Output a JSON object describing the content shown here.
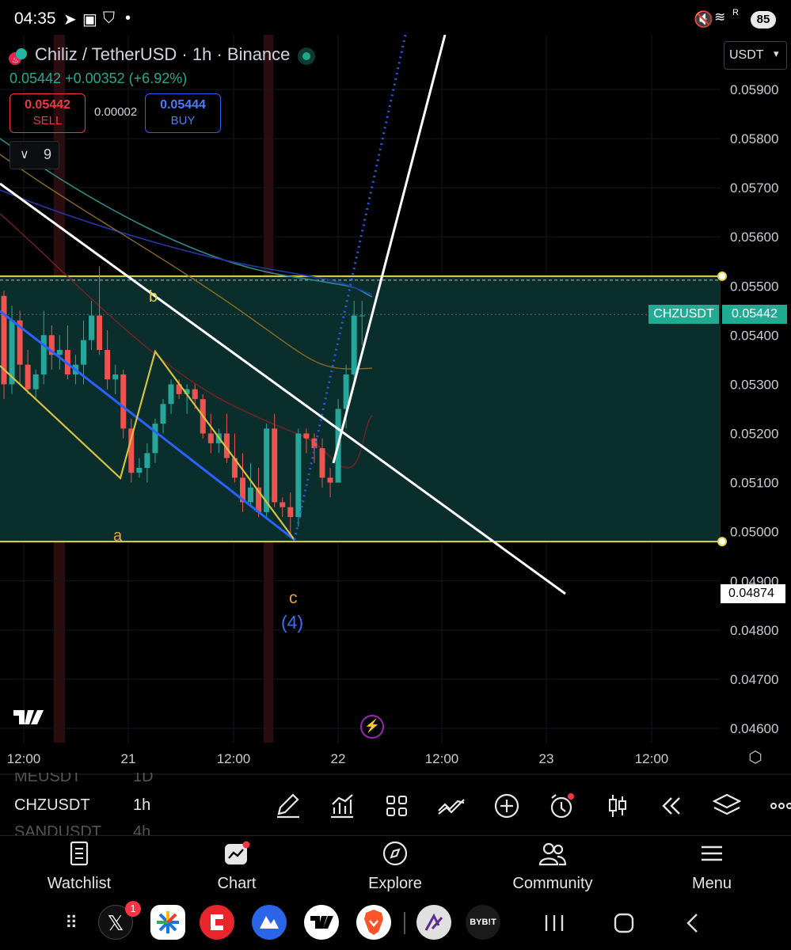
{
  "status_bar": {
    "time": "04:35",
    "battery": "85",
    "signal_label": "R"
  },
  "legend": {
    "title": "Chiliz / TetherUSD · 1h · Binance",
    "last_price": "0.05442",
    "change": "+0.00352 (+6.92%)",
    "sell_price": "0.05442",
    "sell_label": "SELL",
    "spread": "0.00002",
    "buy_price": "0.05444",
    "buy_label": "BUY",
    "indicator_count": "9"
  },
  "currency_select": "USDT",
  "price_axis": {
    "ticks": [
      "0.05900",
      "0.05800",
      "0.05700",
      "0.05600",
      "0.05500",
      "0.05400",
      "0.05300",
      "0.05200",
      "0.05100",
      "0.05000",
      "0.04900",
      "0.04800",
      "0.04700",
      "0.04600"
    ],
    "symbol_tag": "CHZUSDT",
    "current_price_tag": "0.05442",
    "crosshair_price_tag": "0.04874"
  },
  "time_axis": {
    "ticks": [
      "12:00",
      "21",
      "12:00",
      "22",
      "12:00",
      "23",
      "12:00"
    ]
  },
  "annotations": {
    "wave_a": "a",
    "wave_b": "b",
    "wave_c": "c",
    "wave_4": "(4)"
  },
  "chart_data": {
    "type": "candlestick",
    "symbol": "CHZUSDT",
    "interval": "1h",
    "exchange": "Binance",
    "y_range": [
      0.0455,
      0.0602
    ],
    "candles": [
      {
        "o": 0.0548,
        "h": 0.0549,
        "l": 0.0527,
        "c": 0.053
      },
      {
        "o": 0.053,
        "h": 0.0546,
        "l": 0.0528,
        "c": 0.0543
      },
      {
        "o": 0.0543,
        "h": 0.0545,
        "l": 0.053,
        "c": 0.0534
      },
      {
        "o": 0.0534,
        "h": 0.0537,
        "l": 0.0528,
        "c": 0.0529
      },
      {
        "o": 0.0529,
        "h": 0.0533,
        "l": 0.0527,
        "c": 0.0532
      },
      {
        "o": 0.0532,
        "h": 0.0545,
        "l": 0.053,
        "c": 0.054
      },
      {
        "o": 0.054,
        "h": 0.0542,
        "l": 0.0533,
        "c": 0.0536
      },
      {
        "o": 0.0536,
        "h": 0.054,
        "l": 0.0533,
        "c": 0.0537
      },
      {
        "o": 0.0537,
        "h": 0.0542,
        "l": 0.0531,
        "c": 0.0532
      },
      {
        "o": 0.0532,
        "h": 0.0536,
        "l": 0.053,
        "c": 0.0534
      },
      {
        "o": 0.0534,
        "h": 0.0543,
        "l": 0.053,
        "c": 0.0539
      },
      {
        "o": 0.0539,
        "h": 0.0547,
        "l": 0.0537,
        "c": 0.0544
      },
      {
        "o": 0.0544,
        "h": 0.0554,
        "l": 0.0536,
        "c": 0.0537
      },
      {
        "o": 0.0537,
        "h": 0.0541,
        "l": 0.0529,
        "c": 0.0531
      },
      {
        "o": 0.0531,
        "h": 0.0534,
        "l": 0.0528,
        "c": 0.0532
      },
      {
        "o": 0.0532,
        "h": 0.0533,
        "l": 0.0519,
        "c": 0.0521
      },
      {
        "o": 0.0521,
        "h": 0.0523,
        "l": 0.051,
        "c": 0.0512
      },
      {
        "o": 0.0512,
        "h": 0.0515,
        "l": 0.0511,
        "c": 0.0513
      },
      {
        "o": 0.0513,
        "h": 0.0518,
        "l": 0.051,
        "c": 0.0516
      },
      {
        "o": 0.0516,
        "h": 0.0523,
        "l": 0.0514,
        "c": 0.0522
      },
      {
        "o": 0.0522,
        "h": 0.0527,
        "l": 0.052,
        "c": 0.0526
      },
      {
        "o": 0.0526,
        "h": 0.0531,
        "l": 0.0524,
        "c": 0.053
      },
      {
        "o": 0.053,
        "h": 0.0531,
        "l": 0.0527,
        "c": 0.0528
      },
      {
        "o": 0.0528,
        "h": 0.053,
        "l": 0.0524,
        "c": 0.0529
      },
      {
        "o": 0.0529,
        "h": 0.053,
        "l": 0.0525,
        "c": 0.0527
      },
      {
        "o": 0.0527,
        "h": 0.0528,
        "l": 0.0519,
        "c": 0.052
      },
      {
        "o": 0.052,
        "h": 0.0524,
        "l": 0.0516,
        "c": 0.0518
      },
      {
        "o": 0.0518,
        "h": 0.0521,
        "l": 0.0516,
        "c": 0.052
      },
      {
        "o": 0.052,
        "h": 0.0524,
        "l": 0.0514,
        "c": 0.0515
      },
      {
        "o": 0.0515,
        "h": 0.052,
        "l": 0.051,
        "c": 0.0511
      },
      {
        "o": 0.0511,
        "h": 0.0516,
        "l": 0.0504,
        "c": 0.0506
      },
      {
        "o": 0.0506,
        "h": 0.0514,
        "l": 0.0505,
        "c": 0.0509
      },
      {
        "o": 0.0509,
        "h": 0.0513,
        "l": 0.0503,
        "c": 0.0504
      },
      {
        "o": 0.0504,
        "h": 0.0522,
        "l": 0.0503,
        "c": 0.0521
      },
      {
        "o": 0.0521,
        "h": 0.0524,
        "l": 0.0505,
        "c": 0.0506
      },
      {
        "o": 0.0506,
        "h": 0.0507,
        "l": 0.0503,
        "c": 0.0505
      },
      {
        "o": 0.0505,
        "h": 0.0508,
        "l": 0.0499,
        "c": 0.0503
      },
      {
        "o": 0.0503,
        "h": 0.0521,
        "l": 0.0501,
        "c": 0.052
      },
      {
        "o": 0.052,
        "h": 0.0521,
        "l": 0.0516,
        "c": 0.0519
      },
      {
        "o": 0.0519,
        "h": 0.052,
        "l": 0.0514,
        "c": 0.0517
      },
      {
        "o": 0.0517,
        "h": 0.0519,
        "l": 0.0509,
        "c": 0.0511
      },
      {
        "o": 0.0511,
        "h": 0.0513,
        "l": 0.0507,
        "c": 0.051
      },
      {
        "o": 0.051,
        "h": 0.0527,
        "l": 0.051,
        "c": 0.0525
      },
      {
        "o": 0.0525,
        "h": 0.0534,
        "l": 0.0521,
        "c": 0.0532
      },
      {
        "o": 0.0532,
        "h": 0.0547,
        "l": 0.053,
        "c": 0.0544
      },
      {
        "o": 0.0544,
        "h": 0.0547,
        "l": 0.0538,
        "c": 0.0544
      }
    ]
  },
  "watchlist_strip": {
    "rows": [
      {
        "symbol": "MEUSDT",
        "interval": "1D"
      },
      {
        "symbol": "CHZUSDT",
        "interval": "1h"
      },
      {
        "symbol": "SANDUSDT",
        "interval": "4h"
      }
    ]
  },
  "toolbar": {
    "icons": [
      "pencil-icon",
      "indicators-icon",
      "grid-icon",
      "compare-icon",
      "plus-icon",
      "alarm-icon",
      "candles-icon",
      "replay-icon",
      "layers-icon",
      "more-icon"
    ]
  },
  "bottom_nav": {
    "watchlist": "Watchlist",
    "chart": "Chart",
    "explore": "Explore",
    "community": "Community",
    "menu": "Menu"
  },
  "dock": {
    "x_badge": "1",
    "bybit_label": "BYB!T"
  },
  "colors": {
    "up": "#26a69a",
    "down": "#ef5350",
    "zone_fill": "#0a2e2c",
    "zone_border": "#e5d34a",
    "channel_line": "#2962ff",
    "trend_line": "#ffffff",
    "wave_label": "#e8a33c"
  }
}
